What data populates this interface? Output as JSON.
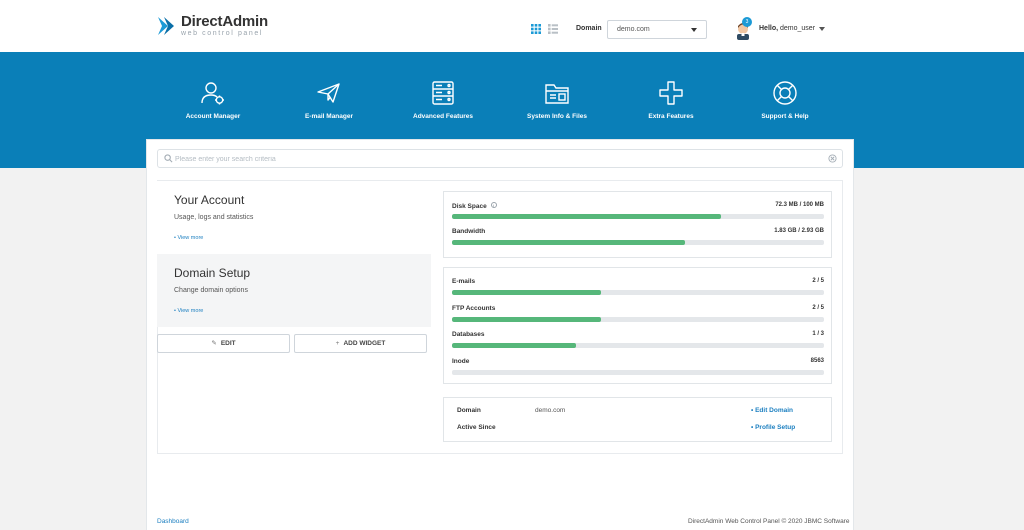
{
  "brand": {
    "name": "DirectAdmin",
    "tagline": "web control panel",
    "accent": "#0a7fb8"
  },
  "header": {
    "domain_label": "Domain",
    "domain_value": "demo.com",
    "notification_count": "3",
    "hello_prefix": "Hello,",
    "username": "demo_user"
  },
  "nav": [
    {
      "label": "Account Manager",
      "icon": "account-manager-icon"
    },
    {
      "label": "E-mail Manager",
      "icon": "paper-plane-icon"
    },
    {
      "label": "Advanced Features",
      "icon": "server-icon"
    },
    {
      "label": "System Info & Files",
      "icon": "folder-icon"
    },
    {
      "label": "Extra Features",
      "icon": "plus-icon"
    },
    {
      "label": "Support & Help",
      "icon": "lifebuoy-icon"
    }
  ],
  "search": {
    "placeholder": "Please enter your search criteria"
  },
  "cards": {
    "account": {
      "title": "Your Account",
      "subtitle": "Usage, logs and statistics",
      "link": "• View more"
    },
    "domain": {
      "title": "Domain Setup",
      "subtitle": "Change domain options",
      "link": "• View more"
    }
  },
  "buttons": {
    "edit": "EDIT",
    "add_widget": "ADD WIDGET"
  },
  "usage": {
    "disk": {
      "label": "Disk Space",
      "value": "72.3 MB / 100 MB",
      "fraction": 0.723
    },
    "bandwidth": {
      "label": "Bandwidth",
      "value": "1.83 GB / 2.93 GB",
      "fraction": 0.625
    }
  },
  "resources": {
    "emails": {
      "label": "E-mails",
      "value": "2 / 5",
      "fraction": 0.4
    },
    "ftp": {
      "label": "FTP Accounts",
      "value": "2 / 5",
      "fraction": 0.4
    },
    "databases": {
      "label": "Databases",
      "value": "1 / 3",
      "fraction": 0.333
    },
    "inodes": {
      "label": "Inode",
      "value": "8563",
      "fraction": 0
    }
  },
  "domain_info": {
    "domain_key": "Domain",
    "domain_value": "demo.com",
    "edit_link": "• Edit Domain",
    "active_key": "Active Since",
    "active_value": "",
    "profile_link": "• Profile Setup"
  },
  "footer": {
    "left": "Dashboard",
    "right": "DirectAdmin Web Control Panel © 2020 JBMC Software"
  }
}
